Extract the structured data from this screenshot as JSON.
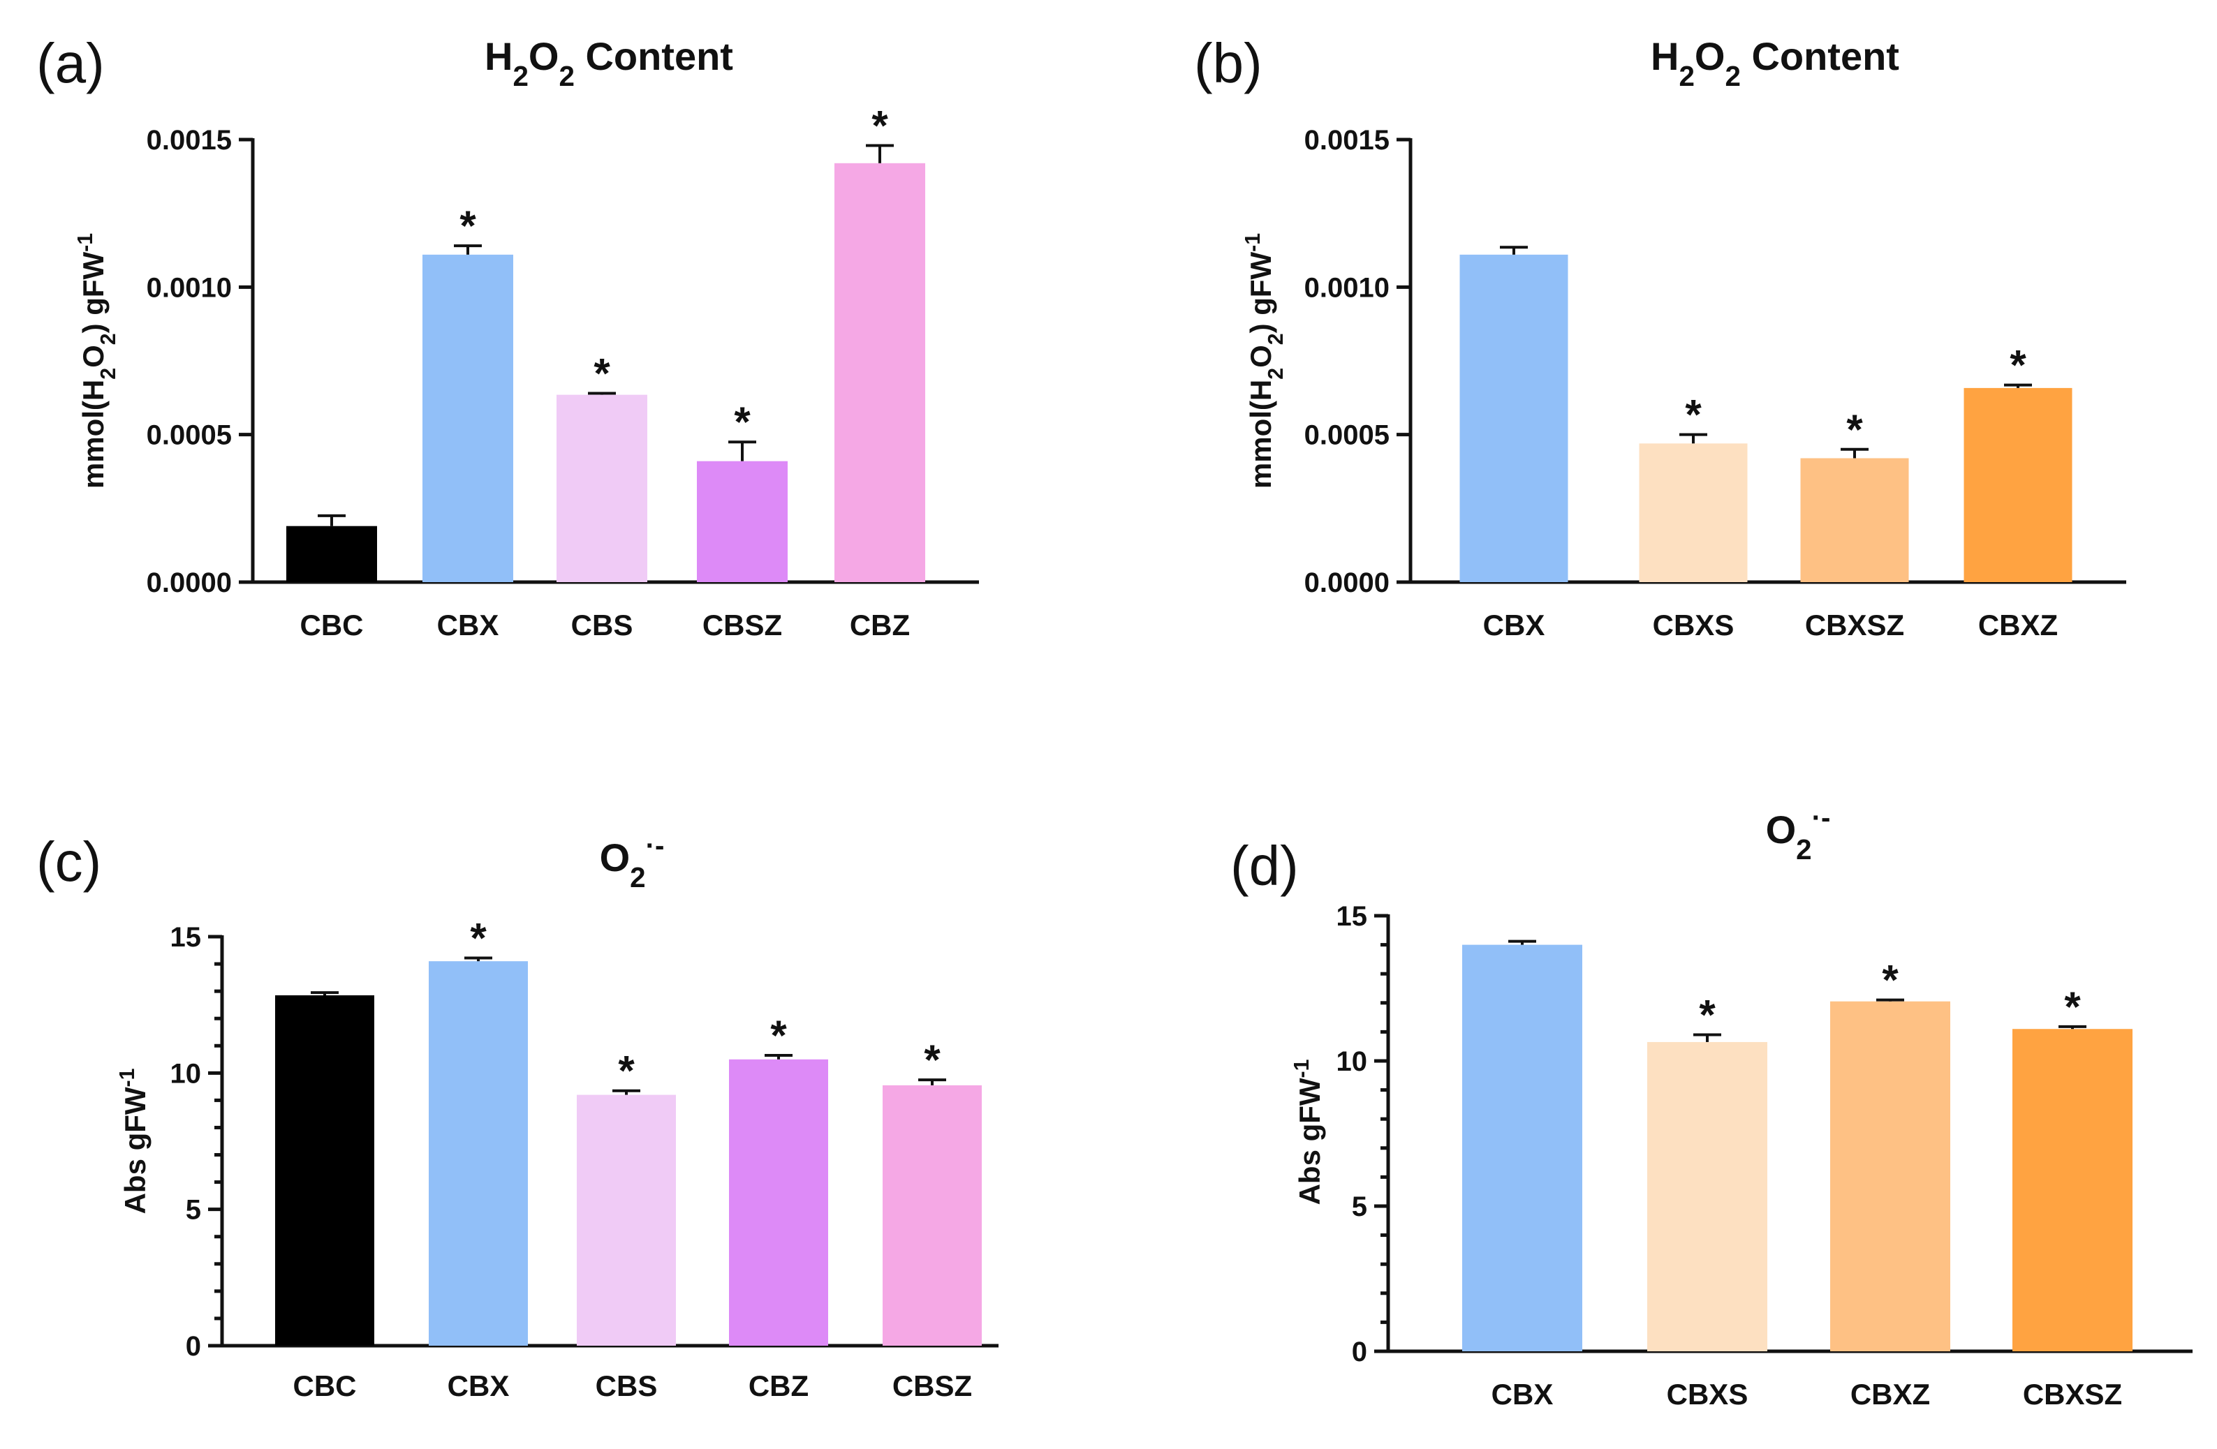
{
  "colors": {
    "CBC": "#000000",
    "CBX": "#91bff8",
    "CBS": "#f0cbf6",
    "CBSZ_a": "#dd8af7",
    "CBZ_a": "#f5a8e5",
    "CBXS": "#fde0c1",
    "CBXSZ_b": "#fec184",
    "CBXZ_b": "#ffa341"
  },
  "chart_data": [
    {
      "panel": "(a)",
      "type": "bar",
      "title": "H2O2 Content",
      "title_parts": [
        "H",
        "2",
        "O",
        "2",
        " Content"
      ],
      "ylabel_parts": [
        "mmol(H",
        "2",
        "O",
        "2",
        ") gFW",
        "-1"
      ],
      "ylabel": "mmol(H2O2) gFW -1",
      "ylim": [
        0,
        0.0015
      ],
      "yticks": [
        0,
        0.0005,
        0.001,
        0.0015
      ],
      "ytick_labels": [
        "0.0000",
        "0.0005",
        "0.0010",
        "0.0015"
      ],
      "minor_per_major": 0,
      "categories": [
        "CBC",
        "CBX",
        "CBS",
        "CBSZ",
        "CBZ"
      ],
      "values": [
        0.00019,
        0.00111,
        0.000635,
        0.00041,
        0.00142
      ],
      "errors": [
        3.5e-05,
        3e-05,
        5e-06,
        6.5e-05,
        6e-05
      ],
      "significance": [
        "",
        "*",
        "*",
        "*",
        "*"
      ],
      "color_keys": [
        "CBC",
        "CBX",
        "CBS",
        "CBSZ_a",
        "CBZ_a"
      ]
    },
    {
      "panel": "(b)",
      "type": "bar",
      "title": "H2O2 Content",
      "title_parts": [
        "H",
        "2",
        "O",
        "2",
        " Content"
      ],
      "ylabel_parts": [
        "mmol(H",
        "2",
        "O",
        "2",
        ") gFW",
        "-1"
      ],
      "ylabel": "mmol(H2O2) gFW -1",
      "ylim": [
        0,
        0.0015
      ],
      "yticks": [
        0,
        0.0005,
        0.001,
        0.0015
      ],
      "ytick_labels": [
        "0.0000",
        "0.0005",
        "0.0010",
        "0.0015"
      ],
      "minor_per_major": 0,
      "categories": [
        "CBX",
        "CBXS",
        "CBXSZ",
        "CBXZ"
      ],
      "values": [
        0.00111,
        0.00047,
        0.00042,
        0.000658
      ],
      "errors": [
        2.5e-05,
        3e-05,
        3e-05,
        1e-05
      ],
      "significance": [
        "",
        "*",
        "*",
        "*"
      ],
      "color_keys": [
        "CBX",
        "CBXS",
        "CBXSZ_b",
        "CBXZ_b"
      ]
    },
    {
      "panel": "(c)",
      "type": "bar",
      "title": "O2·-",
      "title_parts": [
        "O",
        "2",
        "·-"
      ],
      "ylabel_parts": [
        "Abs gFW",
        "-1"
      ],
      "ylabel": "Abs gFW -1",
      "ylim": [
        0,
        15
      ],
      "yticks": [
        0,
        5,
        10,
        15
      ],
      "ytick_labels": [
        "0",
        "5",
        "10",
        "15"
      ],
      "minor_per_major": 4,
      "categories": [
        "CBC",
        "CBX",
        "CBS",
        "CBZ",
        "CBSZ"
      ],
      "values": [
        12.85,
        14.1,
        9.2,
        10.5,
        9.55
      ],
      "errors": [
        0.1,
        0.12,
        0.15,
        0.15,
        0.2
      ],
      "significance": [
        "",
        "*",
        "*",
        "*",
        "*"
      ],
      "color_keys": [
        "CBC",
        "CBX",
        "CBS",
        "CBSZ_a",
        "CBZ_a"
      ]
    },
    {
      "panel": "(d)",
      "type": "bar",
      "title": "O2·-",
      "title_parts": [
        "O",
        "2",
        "·-"
      ],
      "ylabel_parts": [
        "Abs gFW",
        "-1"
      ],
      "ylabel": "Abs gFW -1",
      "ylim": [
        0,
        15
      ],
      "yticks": [
        0,
        5,
        10,
        15
      ],
      "ytick_labels": [
        "0",
        "5",
        "10",
        "15"
      ],
      "minor_per_major": 4,
      "categories": [
        "CBX",
        "CBXS",
        "CBXZ",
        "CBXSZ"
      ],
      "values": [
        14.0,
        10.65,
        12.05,
        11.1
      ],
      "errors": [
        0.12,
        0.25,
        0.05,
        0.08
      ],
      "significance": [
        "",
        "*",
        "*",
        "*"
      ],
      "color_keys": [
        "CBX",
        "CBXS",
        "CBXSZ_b",
        "CBXZ_b"
      ]
    }
  ]
}
